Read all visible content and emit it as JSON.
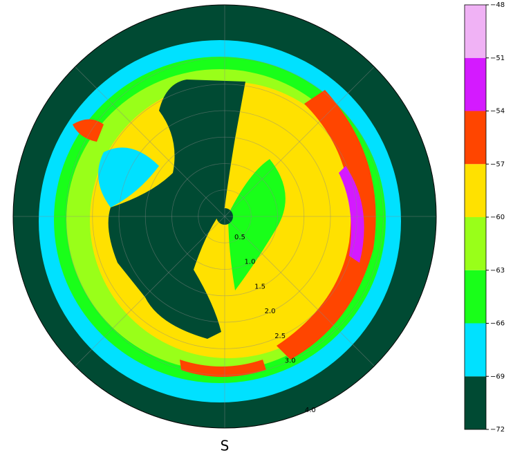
{
  "chart_data": {
    "type": "polar_heatmap",
    "theta_label": "S",
    "rlim": [
      0,
      4
    ],
    "rticks": [
      {
        "value": 0.5,
        "label": "0.5"
      },
      {
        "value": 1,
        "label": "1.0"
      },
      {
        "value": 1.5,
        "label": "1.5"
      },
      {
        "value": 2,
        "label": "2.0"
      },
      2.5,
      {
        "value": 3,
        "label": "3.0"
      },
      {
        "value": 4,
        "label": "4.0"
      }
    ],
    "grid": true,
    "colorbar": {
      "bounds": [
        -72,
        -69,
        -66,
        -63,
        -60,
        -57,
        -54,
        -51,
        -48
      ],
      "colors": [
        "#004a33",
        "#00e1ff",
        "#19ff19",
        "#99ff19",
        "#ffe100",
        "#ff4500",
        "#d41aff",
        "#f0b2f5"
      ],
      "ticks": [
        {
          "value": -72,
          "label": "−72"
        },
        {
          "value": -69,
          "label": "−69"
        },
        {
          "value": -66,
          "label": "−66"
        },
        {
          "value": -63,
          "label": "−63"
        },
        {
          "value": -60,
          "label": "−60"
        },
        {
          "value": -57,
          "label": "−57"
        },
        {
          "value": -54,
          "label": "−54"
        },
        {
          "value": -51,
          "label": "−51"
        },
        {
          "value": -48,
          "label": "−48"
        }
      ]
    }
  }
}
